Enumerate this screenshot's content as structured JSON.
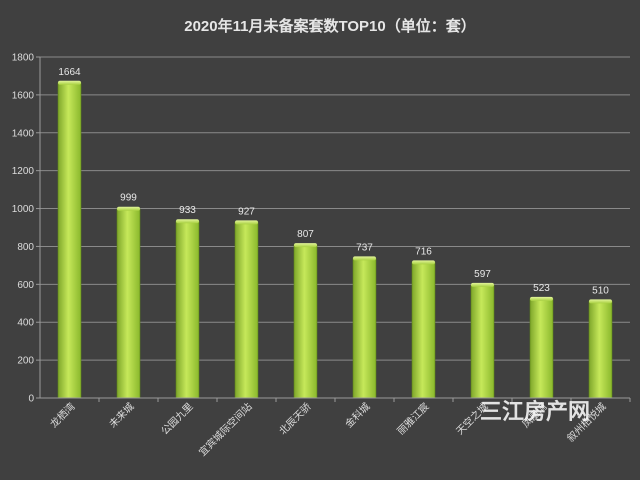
{
  "chart_data": {
    "type": "bar",
    "title": "2020年11月未备案套数TOP10（单位：套）",
    "categories": [
      "龙栖湾",
      "未来城",
      "公园九里",
      "宜宾城际空间站",
      "北辰天骄",
      "金科城",
      "丽雅江宸",
      "天空之城",
      "凤凰湾",
      "叙州柏悦城"
    ],
    "values": [
      1664,
      999,
      933,
      927,
      807,
      737,
      716,
      597,
      523,
      510
    ],
    "ylim": [
      0,
      1800
    ],
    "yticks": [
      0,
      200,
      400,
      600,
      800,
      1000,
      1200,
      1400,
      1600,
      1800
    ],
    "grid": true,
    "legend": "none",
    "colors": {
      "bar_light": "#c6e85a",
      "bar_mid": "#98c832",
      "bar_dark": "#6a9420",
      "background": "#404040"
    }
  },
  "watermark": "三江房产网"
}
